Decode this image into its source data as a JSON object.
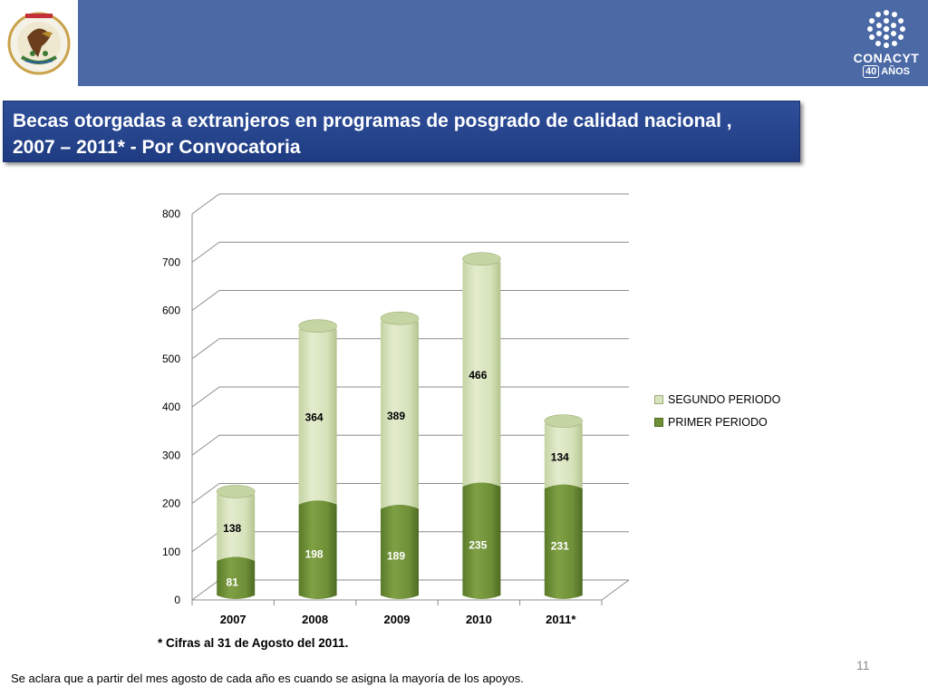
{
  "title": {
    "line1": "Becas otorgadas a extranjeros en programas de posgrado de calidad nacional ,",
    "line2": "2007 – 2011* -  Por  Convocatoria"
  },
  "logo_right": {
    "name": "CONACYT",
    "sub_box": "40",
    "sub_text": "AÑOS"
  },
  "colors": {
    "header_band": "#4a69a5",
    "title_bg": "#2a4a93",
    "primer": "#6f8f38",
    "segundo": "#d7e4bd"
  },
  "chart_data": {
    "type": "bar",
    "stacked": true,
    "categories": [
      "2007",
      "2008",
      "2009",
      "2010",
      "2011*"
    ],
    "series": [
      {
        "name": "PRIMER PERIODO",
        "values": [
          81,
          198,
          189,
          235,
          231
        ]
      },
      {
        "name": "SEGUNDO PERIODO",
        "values": [
          138,
          364,
          389,
          466,
          134
        ]
      }
    ],
    "ylim": [
      0,
      800
    ],
    "yticks": [
      0,
      100,
      200,
      300,
      400,
      500,
      600,
      700,
      800
    ],
    "grid": true,
    "legend_position": "right",
    "legend": [
      "SEGUNDO PERIODO",
      "PRIMER PERIODO"
    ]
  },
  "footnote": "* Cifras al 31 de Agosto del 2011.",
  "page_number": "11",
  "bottom_note": "Se aclara que a partir del  mes agosto de cada año es cuando se asigna la mayoría de los apoyos."
}
